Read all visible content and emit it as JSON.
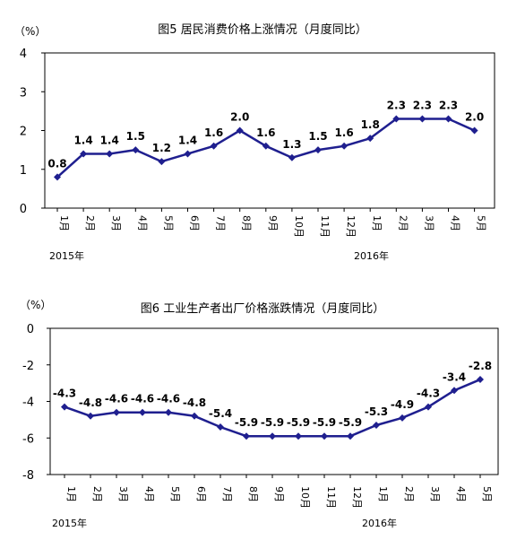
{
  "chart_data": [
    {
      "type": "line",
      "title": "图5  居民消费价格上涨情况（月度同比）",
      "unit": "（%）",
      "categories": [
        "1月",
        "2月",
        "3月",
        "4月",
        "5月",
        "6月",
        "7月",
        "8月",
        "9月",
        "10月",
        "11月",
        "12月",
        "1月",
        "2月",
        "3月",
        "4月",
        "5月"
      ],
      "years": [
        "2015年",
        "2016年"
      ],
      "series": [
        {
          "values": [
            0.8,
            1.4,
            1.4,
            1.5,
            1.2,
            1.4,
            1.6,
            2.0,
            1.6,
            1.3,
            1.5,
            1.6,
            1.8,
            2.3,
            2.3,
            2.3,
            2.0
          ]
        }
      ],
      "value_labels": [
        "0.8",
        "1.4",
        "1.4",
        "1.5",
        "1.2",
        "1.4",
        "1.6",
        "2.0",
        "1.6",
        "1.3",
        "1.5",
        "1.6",
        "1.8",
        "2.3",
        "2.3",
        "2.3",
        "2.0"
      ],
      "yticks": [
        "4",
        "3",
        "2",
        "1",
        "0"
      ],
      "ylim": [
        0,
        4
      ],
      "grid": false,
      "line_color": "#1f1f8f"
    },
    {
      "type": "line",
      "title": "图6  工业生产者出厂价格涨跌情况（月度同比）",
      "unit": "（%）",
      "categories": [
        "1月",
        "2月",
        "3月",
        "4月",
        "5月",
        "6月",
        "7月",
        "8月",
        "9月",
        "10月",
        "11月",
        "12月",
        "1月",
        "2月",
        "3月",
        "4月",
        "5月"
      ],
      "years": [
        "2015年",
        "2016年"
      ],
      "series": [
        {
          "values": [
            -4.3,
            -4.8,
            -4.6,
            -4.6,
            -4.6,
            -4.8,
            -5.4,
            -5.9,
            -5.9,
            -5.9,
            -5.9,
            -5.9,
            -5.3,
            -4.9,
            -4.3,
            -3.4,
            -2.8
          ]
        }
      ],
      "value_labels": [
        "-4.3",
        "-4.8",
        "-4.6",
        "-4.6",
        "-4.6",
        "-4.8",
        "-5.4",
        "-5.9",
        "-5.9",
        "-5.9",
        "-5.9",
        "-5.9",
        "-5.3",
        "-4.9",
        "-4.3",
        "-3.4",
        "-2.8"
      ],
      "yticks": [
        "0",
        "-2",
        "-4",
        "-6",
        "-8"
      ],
      "ylim": [
        -8,
        0
      ],
      "grid": false,
      "line_color": "#1f1f8f"
    }
  ]
}
